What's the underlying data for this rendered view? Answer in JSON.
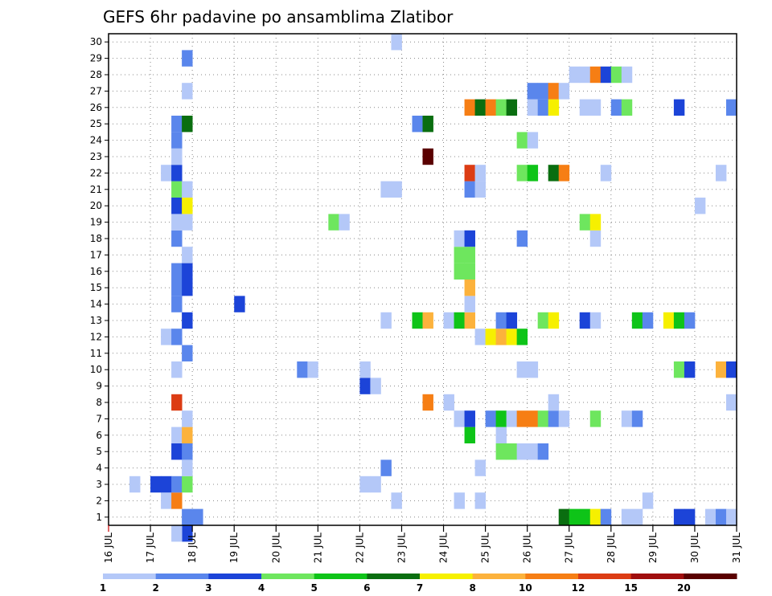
{
  "chart_data": {
    "type": "heatmap",
    "title": "GEFS 6hr padavine po ansamblima Zlatibor",
    "xlabel": "",
    "ylabel": "",
    "x_tick_labels": [
      "16 JUL",
      "17 JUL",
      "18 JUL",
      "19 JUL",
      "20 JUL",
      "21 JUL",
      "22 JUL",
      "23 JUL",
      "24 JUL",
      "25 JUL",
      "26 JUL",
      "27 JUL",
      "28 JUL",
      "29 JUL",
      "30 JUL",
      "31 JUL"
    ],
    "x_range_days": [
      16,
      31
    ],
    "y_tick_labels": [
      "1",
      "2",
      "3",
      "4",
      "5",
      "6",
      "7",
      "8",
      "9",
      "10",
      "11",
      "12",
      "13",
      "14",
      "15",
      "16",
      "17",
      "18",
      "19",
      "20",
      "21",
      "22",
      "23",
      "24",
      "25",
      "26",
      "27",
      "28",
      "29",
      "30"
    ],
    "y_range": [
      0.5,
      30.5
    ],
    "grid": true,
    "colorbar": {
      "orientation": "horizontal",
      "position": "bottom",
      "labels": [
        "1",
        "2",
        "3",
        "4",
        "5",
        "6",
        "7",
        "8",
        "10",
        "12",
        "15",
        "20"
      ],
      "colors": [
        "#b4c8f8",
        "#5a86ec",
        "#1c44d8",
        "#6ee65e",
        "#0ec418",
        "#0a6e10",
        "#f6f000",
        "#fcb23c",
        "#f67e14",
        "#dc3c14",
        "#a00e0e",
        "#5a0000"
      ]
    },
    "cells": [
      [
        17.75,
        1,
        "#5a86ec"
      ],
      [
        18,
        1,
        "#5a86ec"
      ],
      [
        17.75,
        0,
        "#1c44d8"
      ],
      [
        17.5,
        0,
        "#b4c8f8"
      ],
      [
        26.75,
        1,
        "#0a6e10"
      ],
      [
        27,
        1,
        "#0ec418"
      ],
      [
        27.25,
        1,
        "#0ec418"
      ],
      [
        27.5,
        1,
        "#f6f000"
      ],
      [
        27.75,
        1,
        "#5a86ec"
      ],
      [
        28.25,
        1,
        "#b4c8f8"
      ],
      [
        28.5,
        1,
        "#b4c8f8"
      ],
      [
        29.5,
        1,
        "#1c44d8"
      ],
      [
        29.75,
        1,
        "#1c44d8"
      ],
      [
        30.25,
        1,
        "#b4c8f8"
      ],
      [
        30.5,
        1,
        "#5a86ec"
      ],
      [
        30.75,
        1,
        "#b4c8f8"
      ],
      [
        17.25,
        2,
        "#b4c8f8"
      ],
      [
        17.5,
        2,
        "#f67e14"
      ],
      [
        22.75,
        2,
        "#b4c8f8"
      ],
      [
        24.25,
        2,
        "#b4c8f8"
      ],
      [
        24.75,
        2,
        "#b4c8f8"
      ],
      [
        28.75,
        2,
        "#b4c8f8"
      ],
      [
        16.5,
        3,
        "#b4c8f8"
      ],
      [
        17.0,
        3,
        "#1c44d8"
      ],
      [
        17.25,
        3,
        "#1c44d8"
      ],
      [
        17.5,
        3,
        "#5a86ec"
      ],
      [
        17.75,
        3,
        "#6ee65e"
      ],
      [
        22.0,
        3,
        "#b4c8f8"
      ],
      [
        22.25,
        3,
        "#b4c8f8"
      ],
      [
        17.75,
        4,
        "#b4c8f8"
      ],
      [
        22.5,
        4,
        "#5a86ec"
      ],
      [
        24.75,
        4,
        "#b4c8f8"
      ],
      [
        17.5,
        5,
        "#1c44d8"
      ],
      [
        17.75,
        5,
        "#5a86ec"
      ],
      [
        25.25,
        5,
        "#6ee65e"
      ],
      [
        25.5,
        5,
        "#6ee65e"
      ],
      [
        25.75,
        5,
        "#b4c8f8"
      ],
      [
        26.0,
        5,
        "#b4c8f8"
      ],
      [
        26.25,
        5,
        "#5a86ec"
      ],
      [
        17.5,
        6,
        "#b4c8f8"
      ],
      [
        17.75,
        6,
        "#fcb23c"
      ],
      [
        24.5,
        6,
        "#0ec418"
      ],
      [
        25.25,
        6,
        "#b4c8f8"
      ],
      [
        17.75,
        7,
        "#b4c8f8"
      ],
      [
        24.25,
        7,
        "#b4c8f8"
      ],
      [
        24.5,
        7,
        "#1c44d8"
      ],
      [
        25.0,
        7,
        "#5a86ec"
      ],
      [
        25.25,
        7,
        "#0ec418"
      ],
      [
        25.5,
        7,
        "#b4c8f8"
      ],
      [
        25.75,
        7,
        "#f67e14"
      ],
      [
        26.0,
        7,
        "#f67e14"
      ],
      [
        26.25,
        7,
        "#6ee65e"
      ],
      [
        26.5,
        7,
        "#5a86ec"
      ],
      [
        26.75,
        7,
        "#b4c8f8"
      ],
      [
        27.5,
        7,
        "#6ee65e"
      ],
      [
        28.25,
        7,
        "#b4c8f8"
      ],
      [
        28.5,
        7,
        "#5a86ec"
      ],
      [
        17.5,
        8,
        "#dc3c14"
      ],
      [
        23.5,
        8,
        "#f67e14"
      ],
      [
        24.0,
        8,
        "#b4c8f8"
      ],
      [
        26.5,
        8,
        "#b4c8f8"
      ],
      [
        30.75,
        8,
        "#b4c8f8"
      ],
      [
        22.0,
        9,
        "#1c44d8"
      ],
      [
        22.25,
        9,
        "#b4c8f8"
      ],
      [
        17.5,
        10,
        "#b4c8f8"
      ],
      [
        20.5,
        10,
        "#5a86ec"
      ],
      [
        20.75,
        10,
        "#b4c8f8"
      ],
      [
        22.0,
        10,
        "#b4c8f8"
      ],
      [
        25.75,
        10,
        "#b4c8f8"
      ],
      [
        26.0,
        10,
        "#b4c8f8"
      ],
      [
        29.5,
        10,
        "#6ee65e"
      ],
      [
        29.75,
        10,
        "#1c44d8"
      ],
      [
        30.5,
        10,
        "#fcb23c"
      ],
      [
        30.75,
        10,
        "#1c44d8"
      ],
      [
        17.75,
        11,
        "#5a86ec"
      ],
      [
        17.25,
        12,
        "#b4c8f8"
      ],
      [
        17.5,
        12,
        "#5a86ec"
      ],
      [
        24.75,
        12,
        "#b4c8f8"
      ],
      [
        25.0,
        12,
        "#f6f000"
      ],
      [
        25.25,
        12,
        "#fcb23c"
      ],
      [
        25.5,
        12,
        "#f6f000"
      ],
      [
        25.75,
        12,
        "#0ec418"
      ],
      [
        17.75,
        13,
        "#1c44d8"
      ],
      [
        22.5,
        13,
        "#b4c8f8"
      ],
      [
        23.25,
        13,
        "#0ec418"
      ],
      [
        23.5,
        13,
        "#fcb23c"
      ],
      [
        24.0,
        13,
        "#b4c8f8"
      ],
      [
        24.25,
        13,
        "#0ec418"
      ],
      [
        24.5,
        13,
        "#fcb23c"
      ],
      [
        25.25,
        13,
        "#5a86ec"
      ],
      [
        25.5,
        13,
        "#1c44d8"
      ],
      [
        26.25,
        13,
        "#6ee65e"
      ],
      [
        26.5,
        13,
        "#f6f000"
      ],
      [
        27.25,
        13,
        "#1c44d8"
      ],
      [
        27.5,
        13,
        "#b4c8f8"
      ],
      [
        28.5,
        13,
        "#0ec418"
      ],
      [
        28.75,
        13,
        "#5a86ec"
      ],
      [
        29.25,
        13,
        "#f6f000"
      ],
      [
        29.5,
        13,
        "#0ec418"
      ],
      [
        29.75,
        13,
        "#5a86ec"
      ],
      [
        17.5,
        14,
        "#5a86ec"
      ],
      [
        19.0,
        14,
        "#1c44d8"
      ],
      [
        24.5,
        14,
        "#b4c8f8"
      ],
      [
        17.5,
        15,
        "#5a86ec"
      ],
      [
        17.75,
        15,
        "#1c44d8"
      ],
      [
        24.5,
        15,
        "#fcb23c"
      ],
      [
        17.5,
        16,
        "#5a86ec"
      ],
      [
        17.75,
        16,
        "#1c44d8"
      ],
      [
        24.25,
        16,
        "#6ee65e"
      ],
      [
        24.5,
        16,
        "#6ee65e"
      ],
      [
        17.75,
        17,
        "#b4c8f8"
      ],
      [
        24.25,
        17,
        "#6ee65e"
      ],
      [
        24.5,
        17,
        "#6ee65e"
      ],
      [
        17.5,
        18,
        "#5a86ec"
      ],
      [
        24.25,
        18,
        "#b4c8f8"
      ],
      [
        24.5,
        18,
        "#1c44d8"
      ],
      [
        25.75,
        18,
        "#5a86ec"
      ],
      [
        27.5,
        18,
        "#b4c8f8"
      ],
      [
        17.5,
        19,
        "#b4c8f8"
      ],
      [
        17.75,
        19,
        "#b4c8f8"
      ],
      [
        21.25,
        19,
        "#6ee65e"
      ],
      [
        21.5,
        19,
        "#b4c8f8"
      ],
      [
        27.25,
        19,
        "#6ee65e"
      ],
      [
        27.5,
        19,
        "#f6f000"
      ],
      [
        17.5,
        20,
        "#1c44d8"
      ],
      [
        17.75,
        20,
        "#f6f000"
      ],
      [
        30.0,
        20,
        "#b4c8f8"
      ],
      [
        17.5,
        21,
        "#6ee65e"
      ],
      [
        17.75,
        21,
        "#b4c8f8"
      ],
      [
        22.5,
        21,
        "#b4c8f8"
      ],
      [
        22.75,
        21,
        "#b4c8f8"
      ],
      [
        24.5,
        21,
        "#5a86ec"
      ],
      [
        24.75,
        21,
        "#b4c8f8"
      ],
      [
        17.25,
        22,
        "#b4c8f8"
      ],
      [
        17.5,
        22,
        "#1c44d8"
      ],
      [
        24.5,
        22,
        "#dc3c14"
      ],
      [
        24.75,
        22,
        "#b4c8f8"
      ],
      [
        25.75,
        22,
        "#6ee65e"
      ],
      [
        26.0,
        22,
        "#0ec418"
      ],
      [
        26.5,
        22,
        "#0a6e10"
      ],
      [
        26.75,
        22,
        "#f67e14"
      ],
      [
        27.75,
        22,
        "#b4c8f8"
      ],
      [
        30.5,
        22,
        "#b4c8f8"
      ],
      [
        17.5,
        23,
        "#b4c8f8"
      ],
      [
        23.5,
        23,
        "#5a0000"
      ],
      [
        17.5,
        24,
        "#5a86ec"
      ],
      [
        25.75,
        24,
        "#6ee65e"
      ],
      [
        26.0,
        24,
        "#b4c8f8"
      ],
      [
        17.5,
        25,
        "#5a86ec"
      ],
      [
        17.75,
        25,
        "#0a6e10"
      ],
      [
        23.25,
        25,
        "#5a86ec"
      ],
      [
        23.5,
        25,
        "#0a6e10"
      ],
      [
        24.5,
        26,
        "#f67e14"
      ],
      [
        24.75,
        26,
        "#0a6e10"
      ],
      [
        25.0,
        26,
        "#f67e14"
      ],
      [
        25.25,
        26,
        "#6ee65e"
      ],
      [
        25.5,
        26,
        "#0a6e10"
      ],
      [
        26.0,
        26,
        "#b4c8f8"
      ],
      [
        26.25,
        26,
        "#5a86ec"
      ],
      [
        26.5,
        26,
        "#f6f000"
      ],
      [
        27.25,
        26,
        "#b4c8f8"
      ],
      [
        27.5,
        26,
        "#b4c8f8"
      ],
      [
        28.0,
        26,
        "#5a86ec"
      ],
      [
        28.25,
        26,
        "#6ee65e"
      ],
      [
        29.5,
        26,
        "#1c44d8"
      ],
      [
        30.75,
        26,
        "#5a86ec"
      ],
      [
        17.75,
        27,
        "#b4c8f8"
      ],
      [
        26.0,
        27,
        "#5a86ec"
      ],
      [
        26.25,
        27,
        "#5a86ec"
      ],
      [
        26.5,
        27,
        "#f67e14"
      ],
      [
        26.75,
        27,
        "#b4c8f8"
      ],
      [
        27.0,
        28,
        "#b4c8f8"
      ],
      [
        27.25,
        28,
        "#b4c8f8"
      ],
      [
        27.5,
        28,
        "#f67e14"
      ],
      [
        27.75,
        28,
        "#1c44d8"
      ],
      [
        28.0,
        28,
        "#6ee65e"
      ],
      [
        28.25,
        28,
        "#b4c8f8"
      ],
      [
        17.75,
        29,
        "#5a86ec"
      ],
      [
        22.75,
        30,
        "#b4c8f8"
      ]
    ]
  }
}
